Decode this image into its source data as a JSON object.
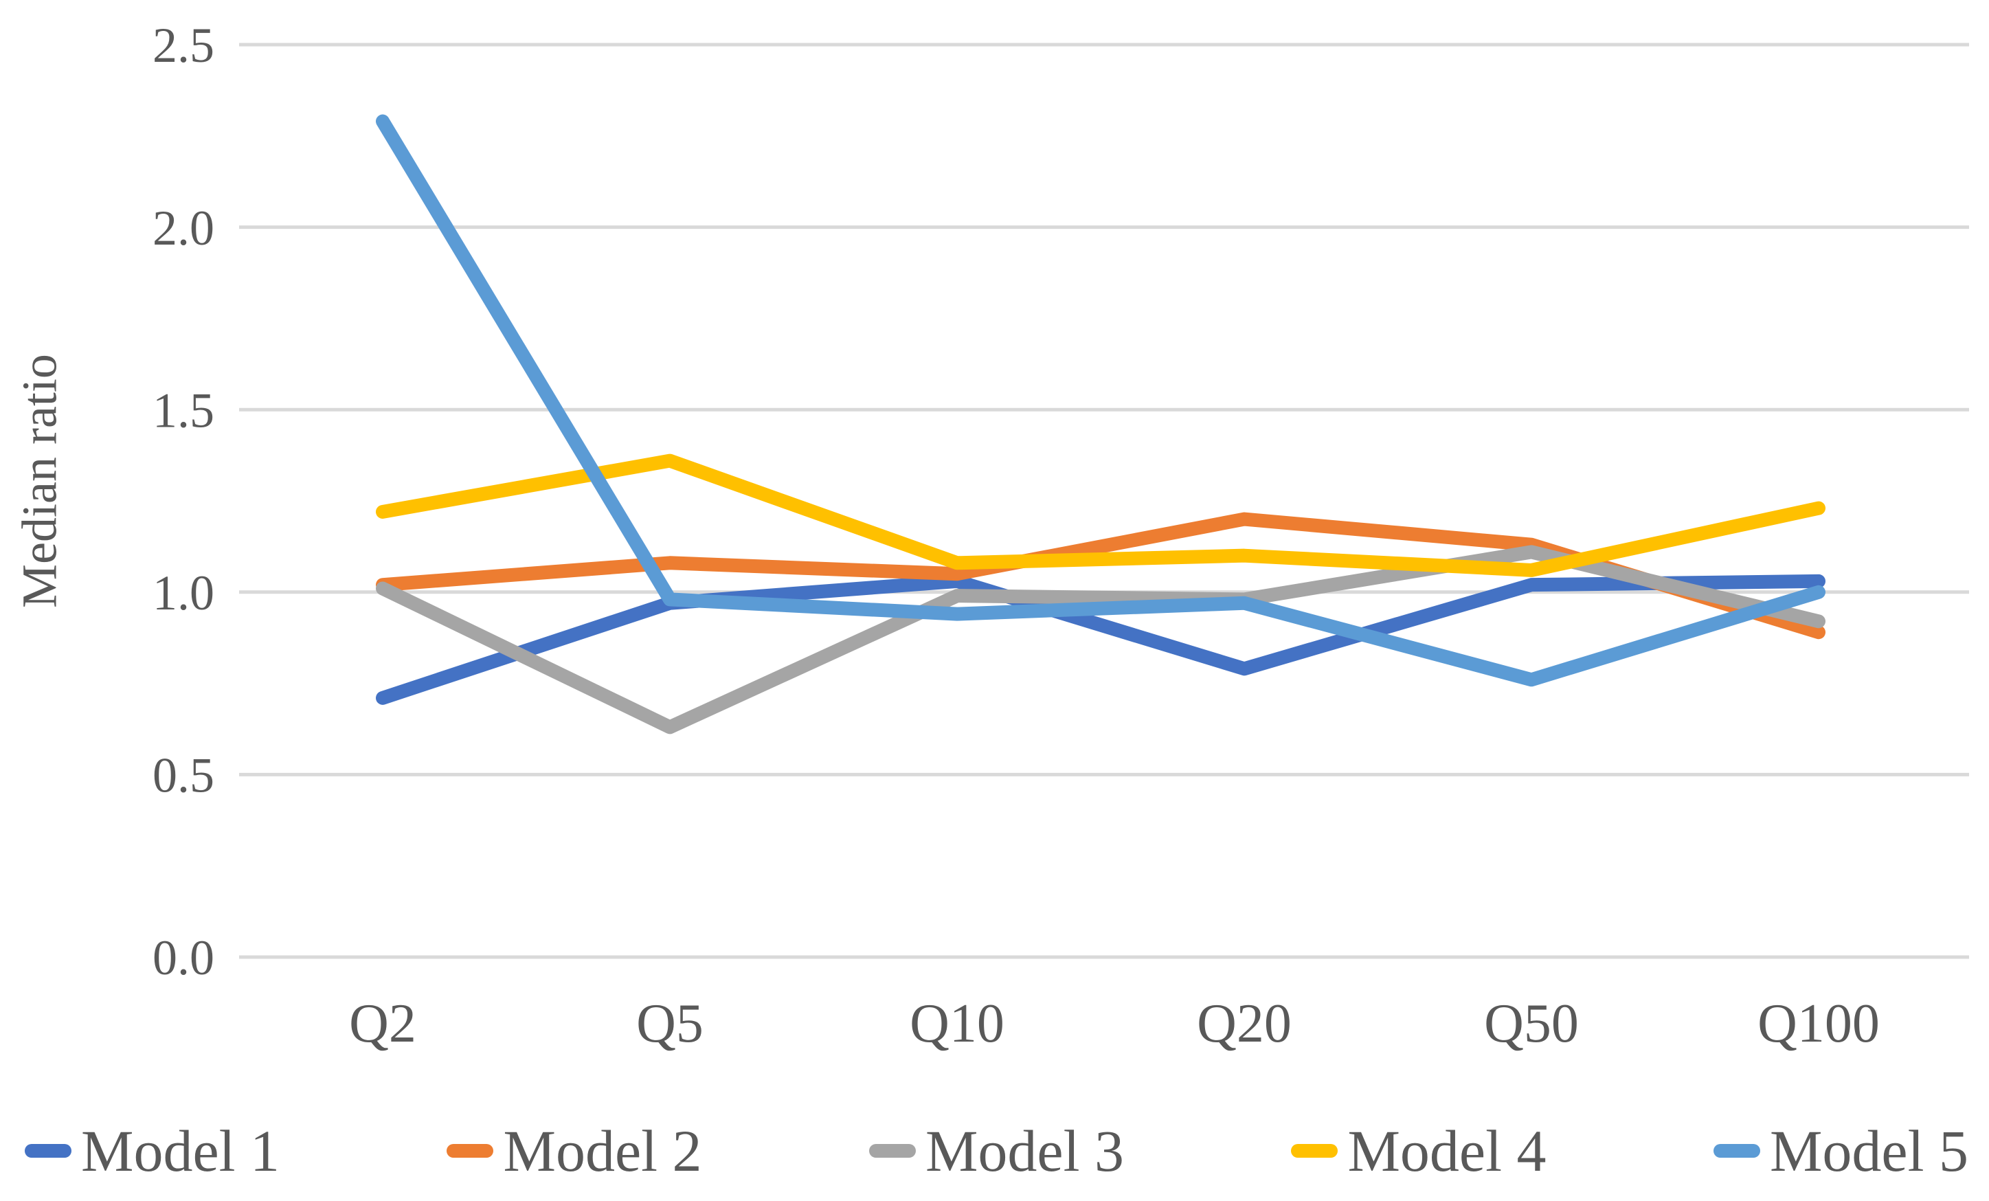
{
  "chart_data": {
    "type": "line",
    "title": "",
    "ylabel": "Median ratio",
    "xlabel": "",
    "categories": [
      "Q2",
      "Q5",
      "Q10",
      "Q20",
      "Q50",
      "Q100"
    ],
    "series": [
      {
        "name": "Model 1",
        "color": "#4472C4",
        "values": [
          0.71,
          0.97,
          1.03,
          0.79,
          1.02,
          1.03
        ]
      },
      {
        "name": "Model 2",
        "color": "#ED7D31",
        "values": [
          1.02,
          1.08,
          1.05,
          1.2,
          1.13,
          0.89
        ]
      },
      {
        "name": "Model 3",
        "color": "#A5A5A5",
        "values": [
          1.01,
          0.63,
          0.99,
          0.98,
          1.11,
          0.92
        ]
      },
      {
        "name": "Model 4",
        "color": "#FFC000",
        "values": [
          1.22,
          1.36,
          1.08,
          1.1,
          1.06,
          1.23
        ]
      },
      {
        "name": "Model 5",
        "color": "#5B9BD5",
        "values": [
          2.29,
          0.98,
          0.94,
          0.97,
          0.76,
          1.0
        ]
      }
    ],
    "ylim": [
      0.0,
      2.5
    ],
    "yticks": [
      "0.0",
      "0.5",
      "1.0",
      "1.5",
      "2.0",
      "2.5"
    ],
    "grid": "horizontal",
    "gridline_color": "#D9D9D9",
    "text_color": "#595959",
    "legend_position": "bottom"
  }
}
